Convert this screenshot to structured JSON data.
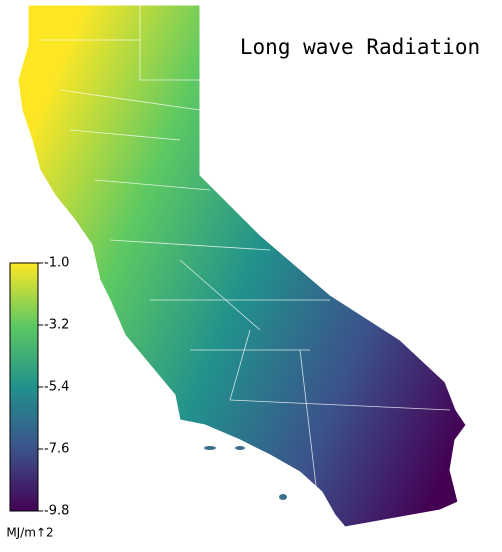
{
  "title": "Long wave Radiation",
  "colorbar": {
    "range": [
      -9.8,
      -1.0
    ],
    "ticks": [
      {
        "value": -1.0,
        "label": "-1.0"
      },
      -3.2,
      -5.4,
      -7.6,
      -9.8
    ],
    "unit": "MJ/m↑2",
    "colors": [
      "#440154",
      "#3b528b",
      "#21918c",
      "#5ec962",
      "#fde725"
    ]
  }
}
